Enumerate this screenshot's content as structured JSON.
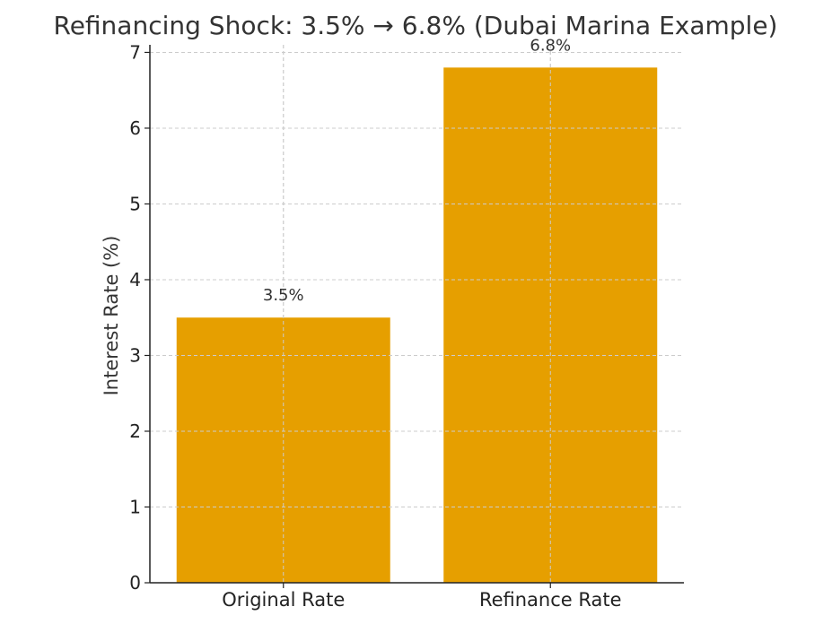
{
  "chart_data": {
    "type": "bar",
    "title": "Refinancing Shock: 3.5% → 6.8% (Dubai Marina Example)",
    "xlabel": "",
    "ylabel": "Interest Rate (%)",
    "categories": [
      "Original Rate",
      "Refinance Rate"
    ],
    "values": [
      3.5,
      6.8
    ],
    "data_labels": [
      "3.5%",
      "6.8%"
    ],
    "ylim": [
      0,
      7.1
    ],
    "yticks": [
      0,
      1,
      2,
      3,
      4,
      5,
      6,
      7
    ],
    "grid": true,
    "bar_color": "#E69F00"
  }
}
